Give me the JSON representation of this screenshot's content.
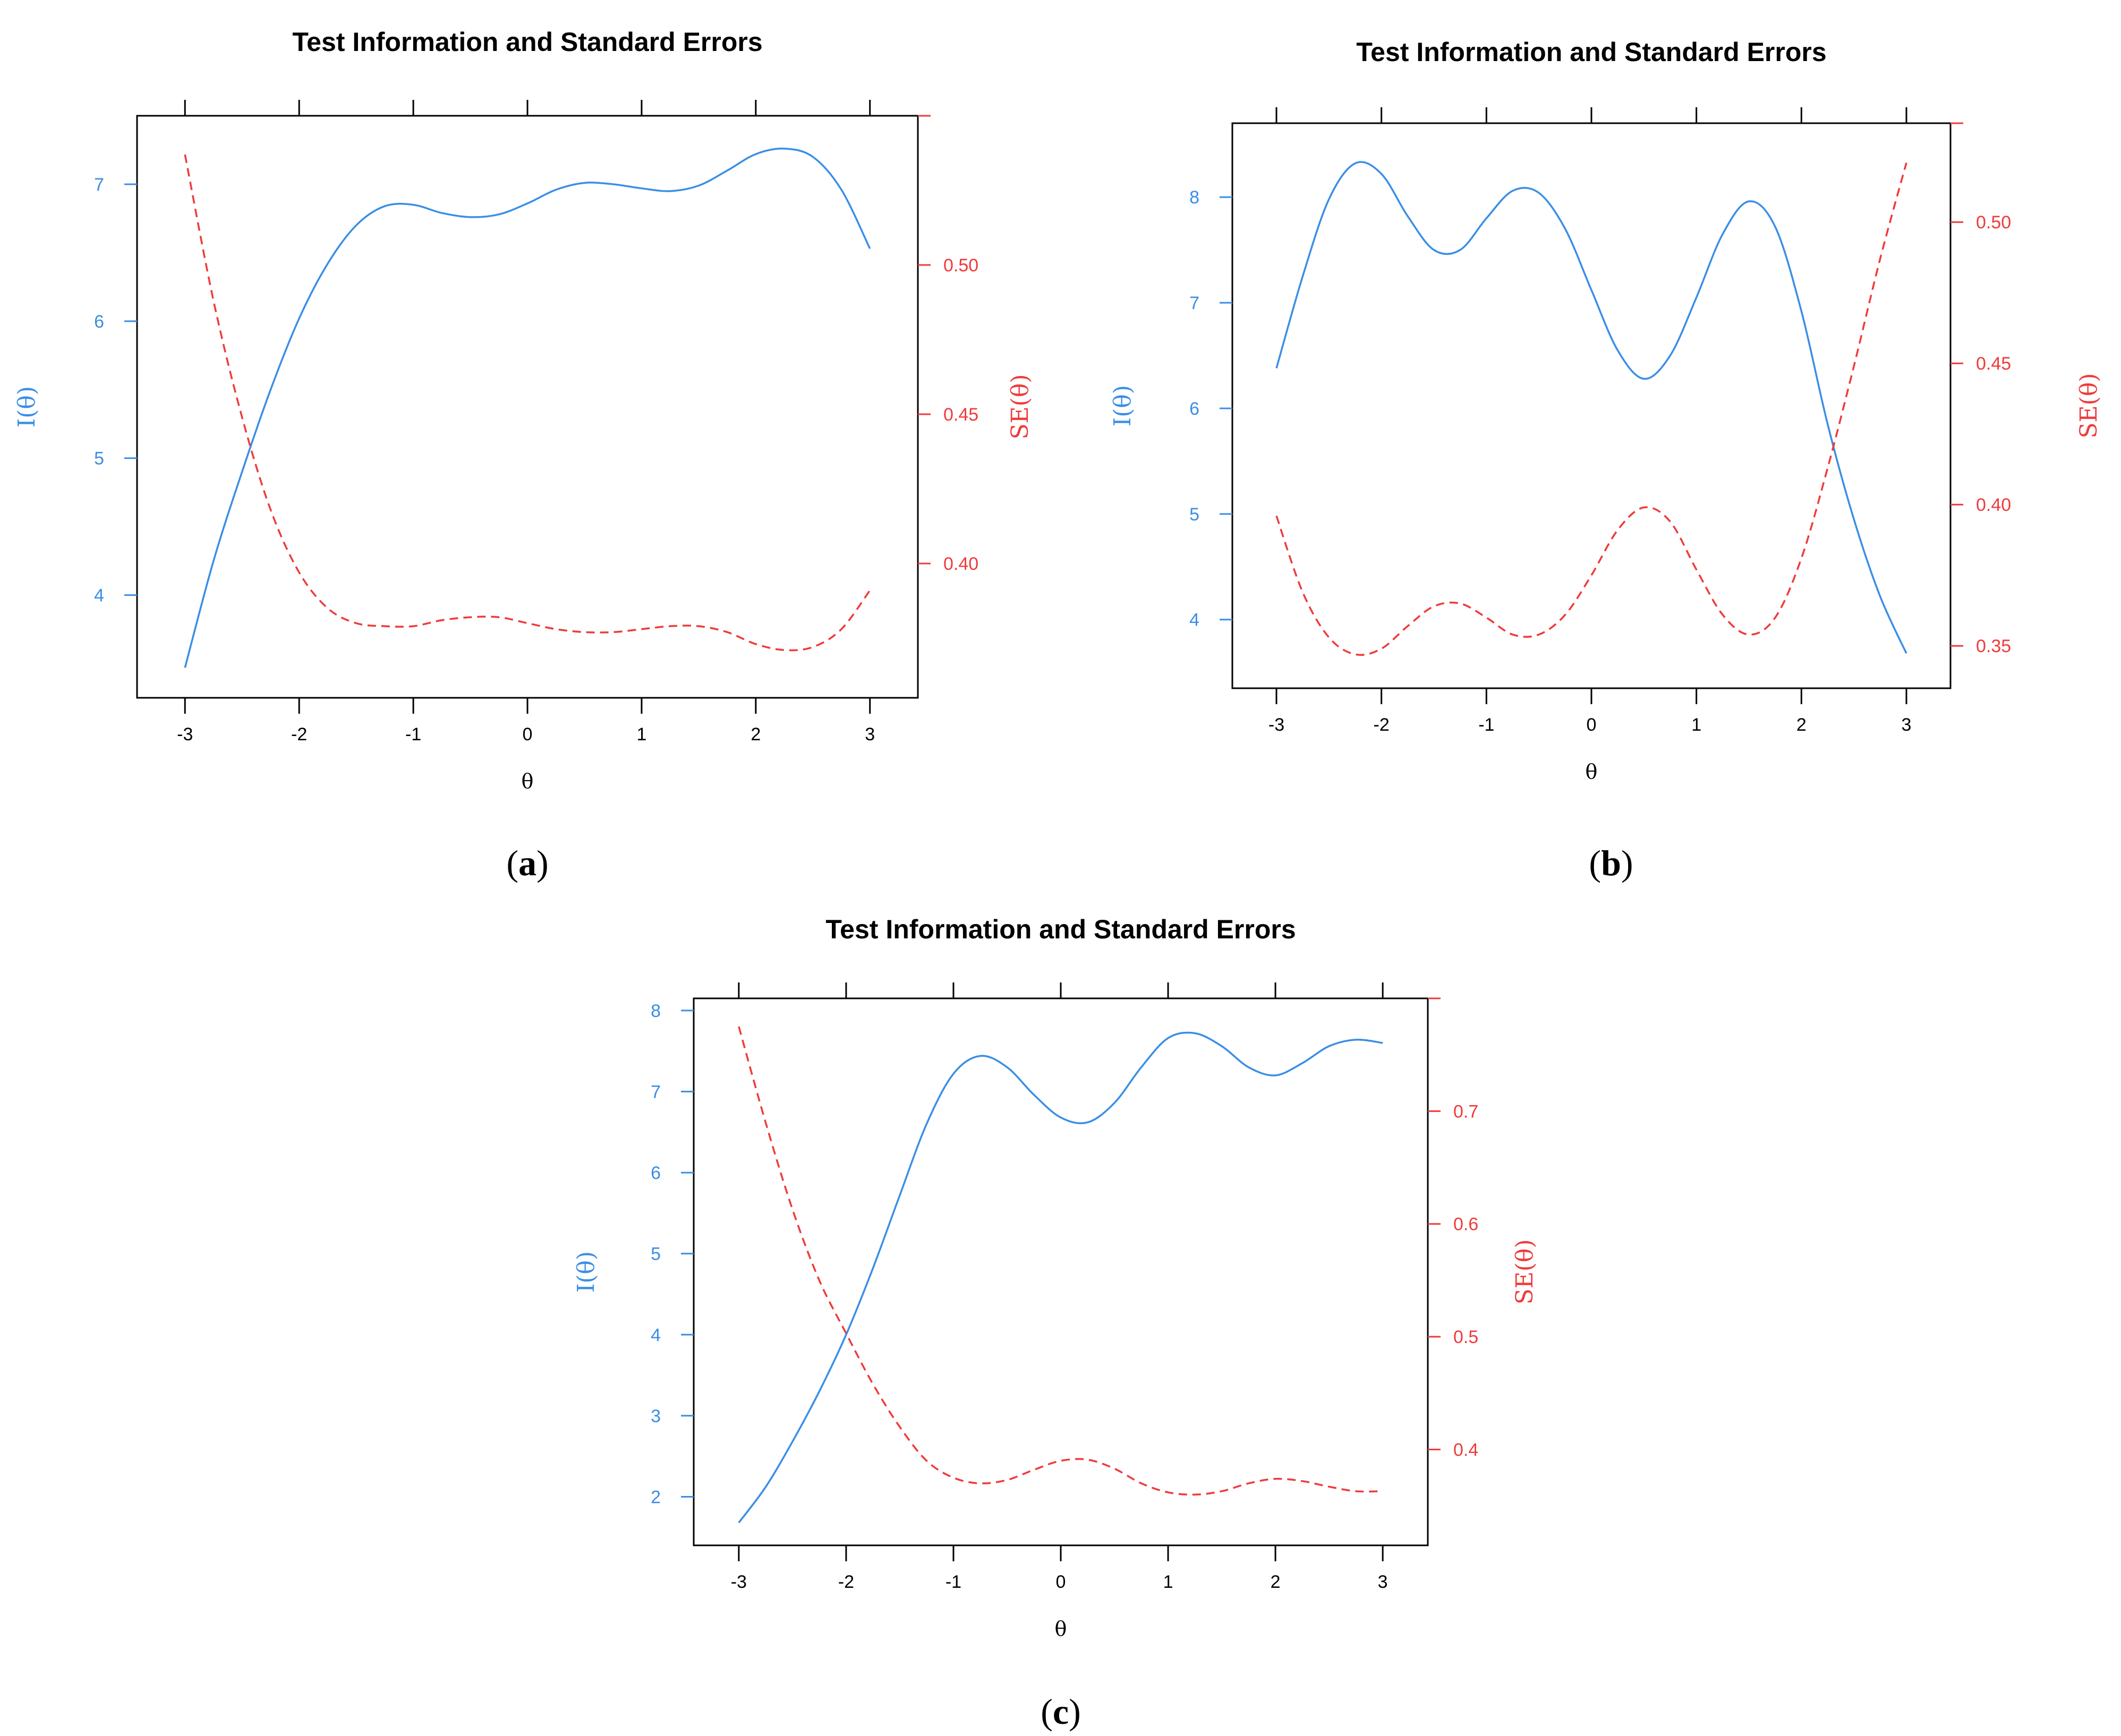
{
  "colors": {
    "info": "#3a8ee6",
    "se": "#f03a3a",
    "axis": "#000000"
  },
  "chart_data": [
    {
      "type": "line",
      "panel_label": "a",
      "title": "Test Information and Standard Errors",
      "xlabel": "θ",
      "ylabel_left": "I(θ)",
      "ylabel_right": "SE(θ)",
      "xlim": [
        -3.42,
        3.42
      ],
      "xticks": [
        -3,
        -2,
        -1,
        0,
        1,
        2,
        3
      ],
      "xtick_labels": [
        "-3",
        "-2",
        "-1",
        "0",
        "1",
        "2",
        "3"
      ],
      "ylim_left": [
        3.25,
        7.5
      ],
      "yticks_left": [
        4,
        5,
        6,
        7
      ],
      "ytick_labels_left": [
        "4",
        "5",
        "6",
        "7"
      ],
      "ylim_right": [
        0.355,
        0.55
      ],
      "yticks_right": [
        0.4,
        0.45,
        0.5
      ],
      "ytick_labels_right": [
        "0.40",
        "0.45",
        "0.50"
      ],
      "series": [
        {
          "axis": "left",
          "style": "solid",
          "x": [
            -3,
            -2.75,
            -2.5,
            -2.25,
            -2,
            -1.75,
            -1.5,
            -1.25,
            -1,
            -0.75,
            -0.5,
            -0.25,
            0,
            0.25,
            0.5,
            0.75,
            1,
            1.25,
            1.5,
            1.75,
            2,
            2.25,
            2.5,
            2.75,
            3
          ],
          "values": [
            3.47,
            4.25,
            4.9,
            5.5,
            6.02,
            6.42,
            6.7,
            6.84,
            6.85,
            6.79,
            6.76,
            6.78,
            6.86,
            6.96,
            7.01,
            7.0,
            6.97,
            6.95,
            6.99,
            7.1,
            7.22,
            7.26,
            7.2,
            6.96,
            6.53
          ]
        },
        {
          "axis": "right",
          "style": "dashed",
          "x": [
            -3,
            -2.75,
            -2.5,
            -2.25,
            -2,
            -1.75,
            -1.5,
            -1.25,
            -1,
            -0.75,
            -0.5,
            -0.25,
            0,
            0.25,
            0.5,
            0.75,
            1,
            1.25,
            1.5,
            1.75,
            2,
            2.25,
            2.5,
            2.75,
            3
          ],
          "values": [
            0.537,
            0.488,
            0.449,
            0.418,
            0.397,
            0.385,
            0.38,
            0.379,
            0.379,
            0.381,
            0.382,
            0.382,
            0.38,
            0.378,
            0.377,
            0.377,
            0.378,
            0.379,
            0.379,
            0.377,
            0.373,
            0.371,
            0.372,
            0.378,
            0.391
          ]
        }
      ]
    },
    {
      "type": "line",
      "panel_label": "b",
      "title": "Test Information and Standard Errors",
      "xlabel": "θ",
      "ylabel_left": "I(θ)",
      "ylabel_right": "SE(θ)",
      "xlim": [
        -3.42,
        3.42
      ],
      "xticks": [
        -3,
        -2,
        -1,
        0,
        1,
        2,
        3
      ],
      "xtick_labels": [
        "-3",
        "-2",
        "-1",
        "0",
        "1",
        "2",
        "3"
      ],
      "ylim_left": [
        3.35,
        8.7
      ],
      "yticks_left": [
        4,
        5,
        6,
        7,
        8
      ],
      "ytick_labels_left": [
        "4",
        "5",
        "6",
        "7",
        "8"
      ],
      "ylim_right": [
        0.335,
        0.535
      ],
      "yticks_right": [
        0.35,
        0.4,
        0.45,
        0.5
      ],
      "ytick_labels_right": [
        "0.35",
        "0.40",
        "0.45",
        "0.50"
      ],
      "series": [
        {
          "axis": "left",
          "style": "solid",
          "x": [
            -3,
            -2.75,
            -2.5,
            -2.25,
            -2,
            -1.75,
            -1.5,
            -1.25,
            -1,
            -0.75,
            -0.5,
            -0.25,
            0,
            0.25,
            0.5,
            0.75,
            1,
            1.25,
            1.5,
            1.75,
            2,
            2.25,
            2.5,
            2.75,
            3
          ],
          "values": [
            6.38,
            7.25,
            7.98,
            8.32,
            8.22,
            7.82,
            7.5,
            7.5,
            7.8,
            8.06,
            8.04,
            7.7,
            7.12,
            6.55,
            6.28,
            6.5,
            7.05,
            7.65,
            7.96,
            7.72,
            6.92,
            5.85,
            4.95,
            4.22,
            3.68
          ]
        },
        {
          "axis": "right",
          "style": "dashed",
          "x": [
            -3,
            -2.75,
            -2.5,
            -2.25,
            -2,
            -1.75,
            -1.5,
            -1.25,
            -1,
            -0.75,
            -0.5,
            -0.25,
            0,
            0.25,
            0.5,
            0.75,
            1,
            1.25,
            1.5,
            1.75,
            2,
            2.25,
            2.5,
            2.75,
            3
          ],
          "values": [
            0.396,
            0.369,
            0.353,
            0.347,
            0.349,
            0.357,
            0.364,
            0.365,
            0.36,
            0.354,
            0.354,
            0.361,
            0.375,
            0.391,
            0.399,
            0.394,
            0.377,
            0.361,
            0.354,
            0.36,
            0.381,
            0.413,
            0.449,
            0.487,
            0.521
          ]
        }
      ]
    },
    {
      "type": "line",
      "panel_label": "c",
      "title": "Test Information and Standard Errors",
      "xlabel": "θ",
      "ylabel_left": "I(θ)",
      "ylabel_right": "SE(θ)",
      "xlim": [
        -3.42,
        3.42
      ],
      "xticks": [
        -3,
        -2,
        -1,
        0,
        1,
        2,
        3
      ],
      "xtick_labels": [
        "-3",
        "-2",
        "-1",
        "0",
        "1",
        "2",
        "3"
      ],
      "ylim_left": [
        1.4,
        8.15
      ],
      "yticks_left": [
        2,
        3,
        4,
        5,
        6,
        7,
        8
      ],
      "ytick_labels_left": [
        "2",
        "3",
        "4",
        "5",
        "6",
        "7",
        "8"
      ],
      "ylim_right": [
        0.315,
        0.8
      ],
      "yticks_right": [
        0.4,
        0.5,
        0.6,
        0.7
      ],
      "ytick_labels_right": [
        "0.4",
        "0.5",
        "0.6",
        "0.7"
      ],
      "series": [
        {
          "axis": "left",
          "style": "solid",
          "x": [
            -3,
            -2.75,
            -2.5,
            -2.25,
            -2,
            -1.75,
            -1.5,
            -1.25,
            -1,
            -0.75,
            -0.5,
            -0.25,
            0,
            0.25,
            0.5,
            0.75,
            1,
            1.25,
            1.5,
            1.75,
            2,
            2.25,
            2.5,
            2.75,
            3
          ],
          "values": [
            1.68,
            2.12,
            2.68,
            3.3,
            4.0,
            4.82,
            5.72,
            6.6,
            7.22,
            7.44,
            7.3,
            6.96,
            6.68,
            6.62,
            6.86,
            7.3,
            7.66,
            7.72,
            7.56,
            7.3,
            7.2,
            7.35,
            7.56,
            7.64,
            7.6
          ]
        },
        {
          "axis": "right",
          "style": "dashed",
          "x": [
            -3,
            -2.75,
            -2.5,
            -2.25,
            -2,
            -1.75,
            -1.5,
            -1.25,
            -1,
            -0.75,
            -0.5,
            -0.25,
            0,
            0.25,
            0.5,
            0.75,
            1,
            1.25,
            1.5,
            1.75,
            2,
            2.25,
            2.5,
            2.75,
            3
          ],
          "values": [
            0.775,
            0.69,
            0.613,
            0.55,
            0.503,
            0.458,
            0.42,
            0.39,
            0.375,
            0.37,
            0.373,
            0.382,
            0.39,
            0.391,
            0.383,
            0.37,
            0.362,
            0.36,
            0.363,
            0.37,
            0.374,
            0.372,
            0.367,
            0.363,
            0.363
          ]
        }
      ]
    }
  ]
}
